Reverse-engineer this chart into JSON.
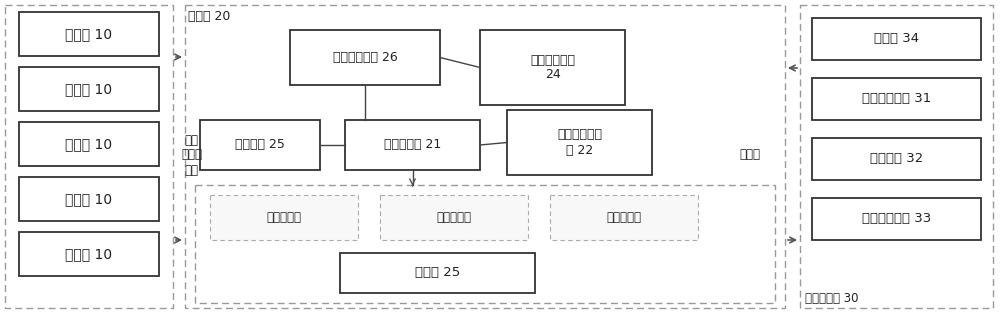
{
  "bg_color": "#ffffff",
  "text_color": "#222222",
  "cameras": [
    "摄像头 10",
    "摄像头 10",
    "摄像头 10",
    "摄像头 10",
    "摄像头 10"
  ],
  "ad_machine_label": "广告机 20",
  "cloud_server_label": "云端服务器 30",
  "local_net_label": "同一\n局域网\n连接",
  "internet_label": "互联网",
  "display_screen_label": "显示屏 25",
  "display_zones": [
    "视频显示区",
    "图片显示区",
    "图片显示区"
  ],
  "cloud_boxes": [
    "数据库 34",
    "终端管理单元 31",
    "审核单元 32",
    "播出管理单元 33"
  ]
}
